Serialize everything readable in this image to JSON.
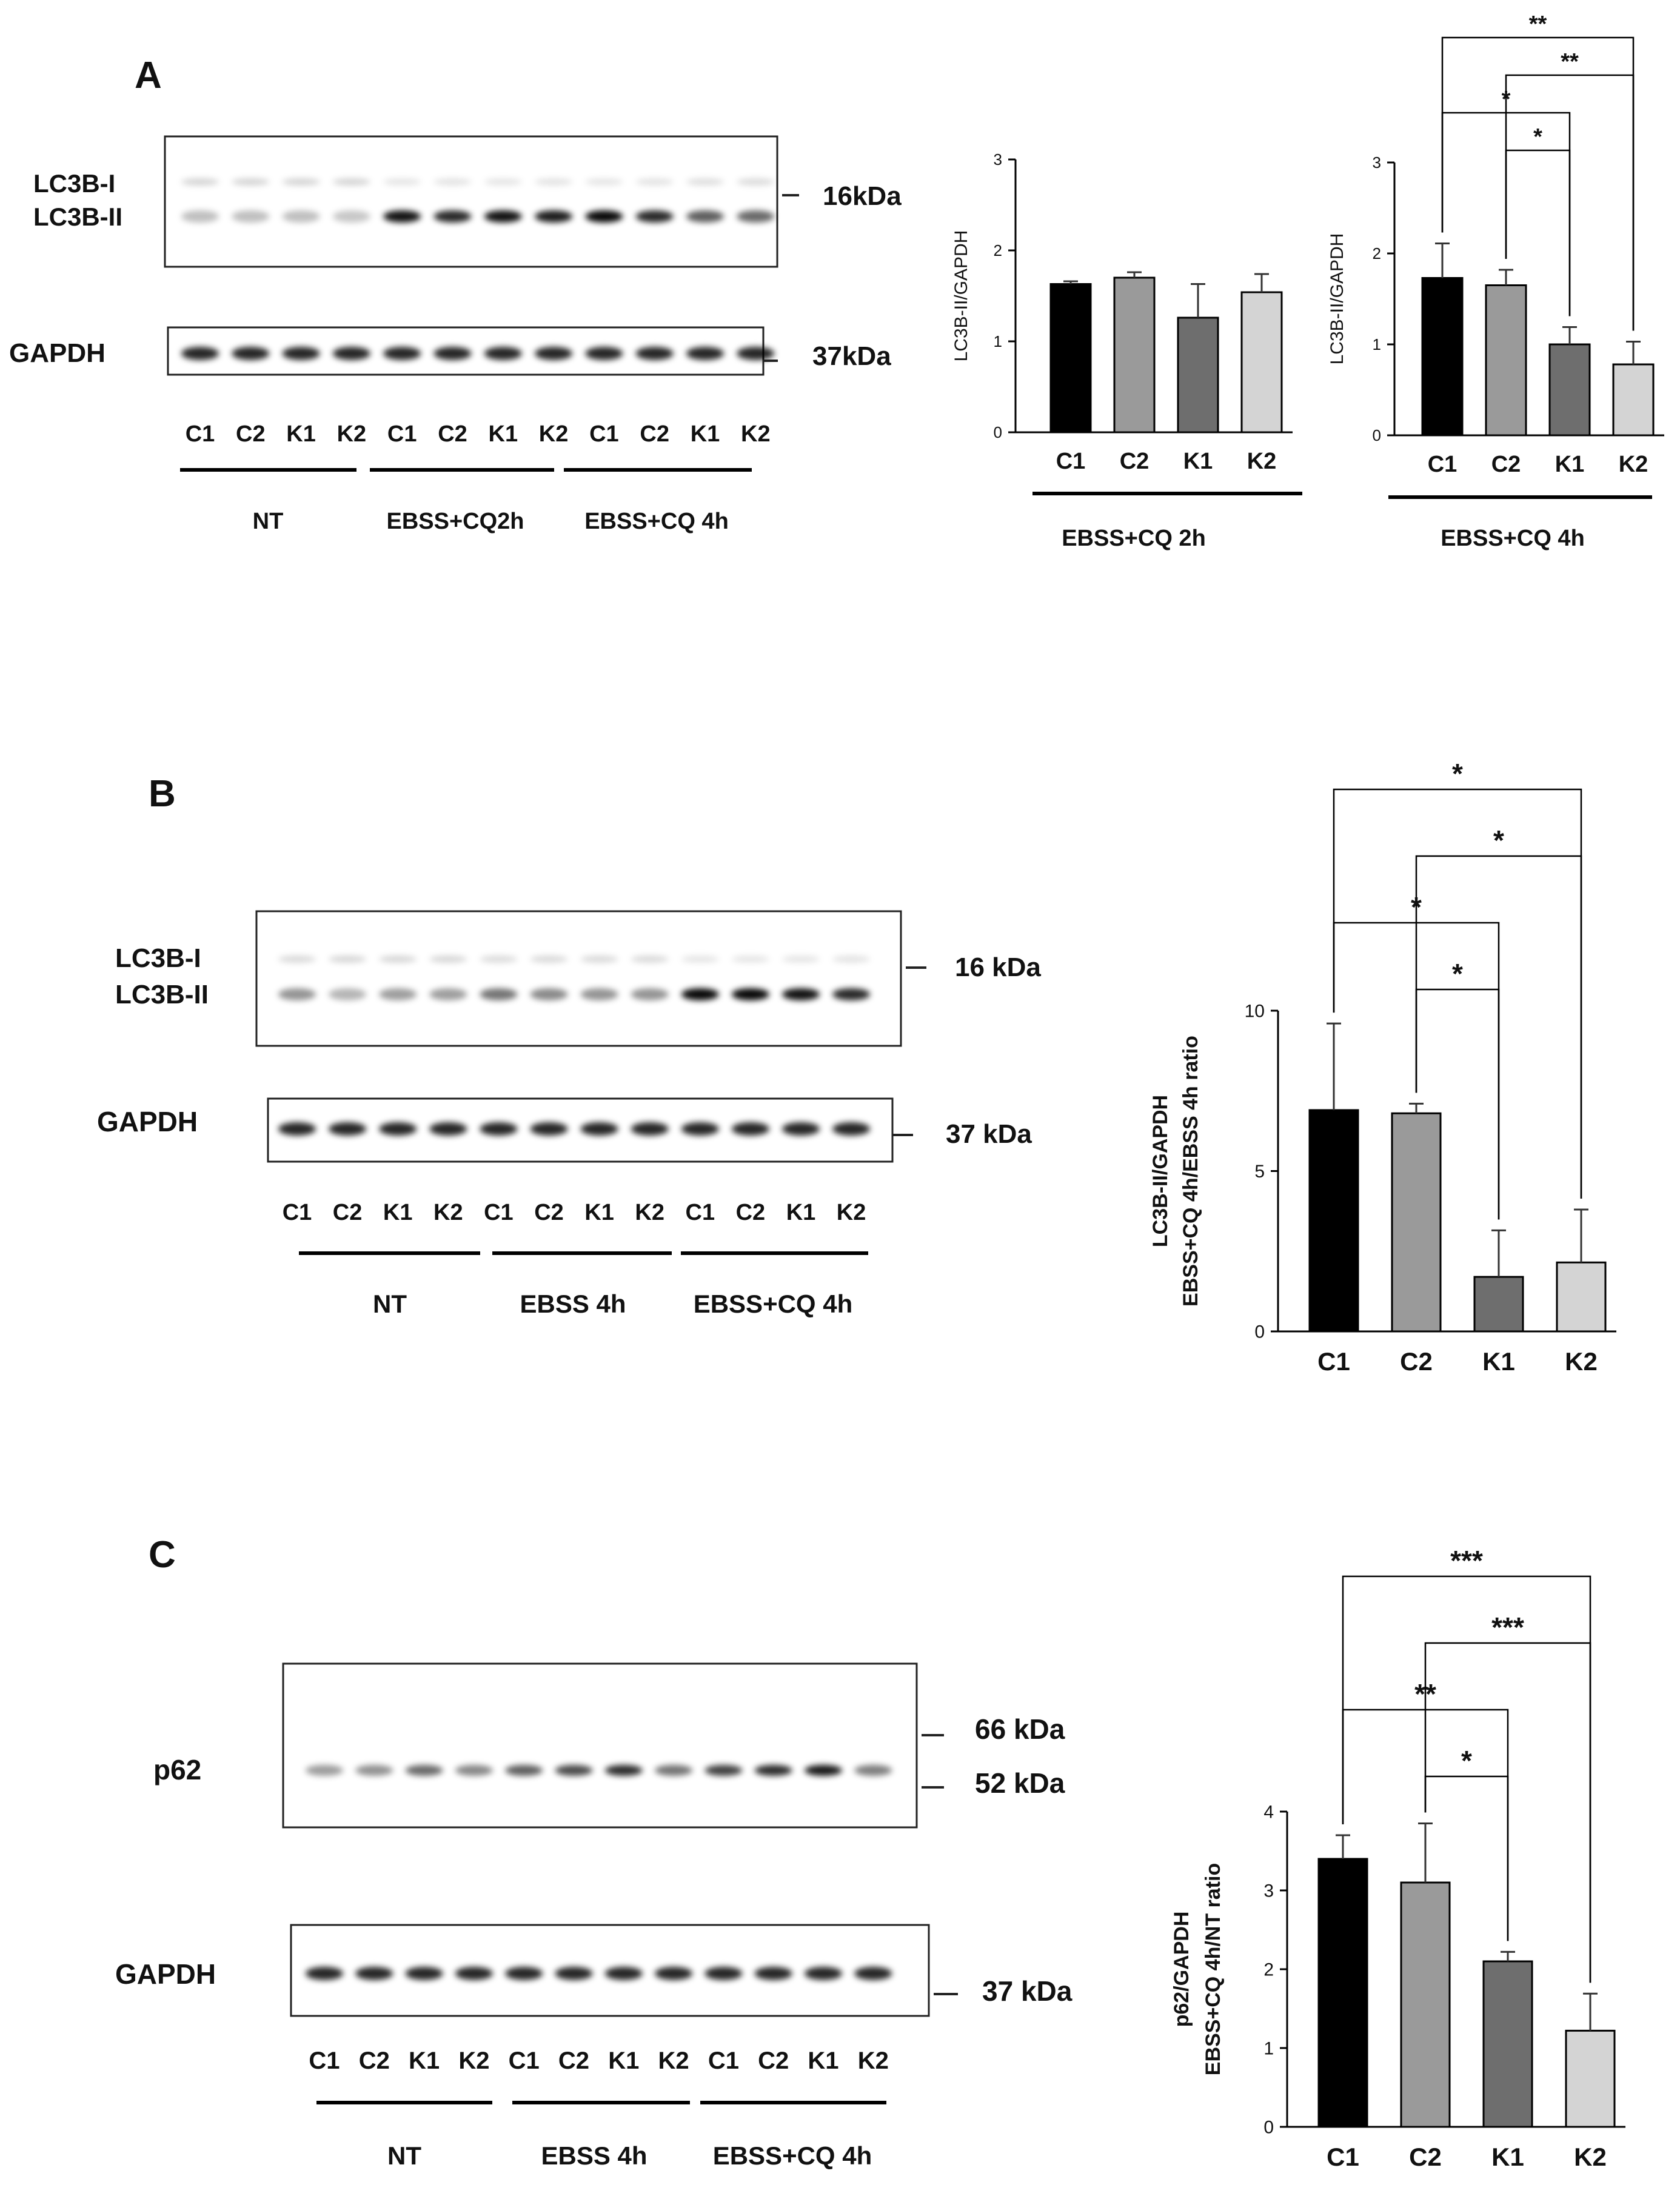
{
  "panels": [
    {
      "id": "A",
      "label": "A",
      "blot": {
        "proteins": [
          "LC3B-I",
          "LC3B-II"
        ],
        "marker": "16kDa",
        "loading_label": "GAPDH",
        "loading_marker": "37kDa",
        "lanes": [
          "C1",
          "C2",
          "K1",
          "K2",
          "C1",
          "C2",
          "K1",
          "K2",
          "C1",
          "C2",
          "K1",
          "K2"
        ],
        "groups": [
          "NT",
          "EBSS+CQ2h",
          "EBSS+CQ 4h"
        ],
        "bands_top": [
          0.15,
          0.15,
          0.15,
          0.12,
          0.95,
          0.85,
          0.95,
          0.9,
          1.0,
          0.85,
          0.6,
          0.55
        ],
        "bands_bottom": [
          1,
          1,
          1,
          1,
          1,
          1,
          1,
          1,
          1,
          1,
          1,
          1
        ]
      }
    },
    {
      "id": "B",
      "label": "B",
      "blot": {
        "proteins": [
          "LC3B-I",
          "LC3B-II"
        ],
        "marker": "16 kDa",
        "loading_label": "GAPDH",
        "loading_marker": "37 kDa",
        "lanes": [
          "C1",
          "C2",
          "K1",
          "K2",
          "C1",
          "C2",
          "K1",
          "K2",
          "C1",
          "C2",
          "K1",
          "K2"
        ],
        "groups": [
          "NT",
          "EBSS 4h",
          "EBSS+CQ 4h"
        ],
        "bands_top": [
          0.35,
          0.2,
          0.3,
          0.3,
          0.5,
          0.4,
          0.35,
          0.35,
          1.0,
          1.0,
          0.95,
          0.85
        ],
        "bands_bottom": [
          1,
          1,
          1,
          1,
          1,
          1,
          1,
          1,
          1,
          1,
          1,
          1
        ]
      }
    },
    {
      "id": "C",
      "label": "C",
      "blot": {
        "proteins": [
          "p62"
        ],
        "marker_top": "66 kDa",
        "marker": "52 kDa",
        "loading_label": "GAPDH",
        "loading_marker": "37 kDa",
        "lanes": [
          "C1",
          "C2",
          "K1",
          "K2",
          "C1",
          "C2",
          "K1",
          "K2",
          "C1",
          "C2",
          "K1",
          "K2"
        ],
        "groups": [
          "NT",
          "EBSS 4h",
          "EBSS+CQ 4h"
        ],
        "bands_top": [
          0.3,
          0.35,
          0.55,
          0.4,
          0.6,
          0.7,
          0.85,
          0.5,
          0.75,
          0.85,
          0.95,
          0.45
        ],
        "bands_bottom": [
          1,
          1,
          1,
          1,
          1,
          1,
          1,
          1,
          1,
          1,
          1,
          1
        ]
      }
    }
  ],
  "chart_data": [
    {
      "type": "bar",
      "panel": "A",
      "categories": [
        "C1",
        "C2",
        "K1",
        "K2"
      ],
      "values": [
        1.63,
        1.7,
        1.26,
        1.54
      ],
      "errors": [
        0.03,
        0.06,
        0.37,
        0.2
      ],
      "colors": [
        "#000000",
        "#9a9a9a",
        "#6e6e6e",
        "#d4d4d4"
      ],
      "ylabel": "LC3B-II/GAPDH",
      "xlabel": "EBSS+CQ 2h",
      "ylim": [
        0,
        3
      ],
      "yticks": [
        "0",
        "1",
        "2",
        "3"
      ],
      "significance": []
    },
    {
      "type": "bar",
      "panel": "A",
      "categories": [
        "C1",
        "C2",
        "K1",
        "K2"
      ],
      "values": [
        1.73,
        1.65,
        1.0,
        0.78
      ],
      "errors": [
        0.38,
        0.17,
        0.19,
        0.25
      ],
      "colors": [
        "#000000",
        "#9a9a9a",
        "#6e6e6e",
        "#d4d4d4"
      ],
      "ylabel": "LC3B-II/GAPDH",
      "xlabel": "EBSS+CQ 4h",
      "ylim": [
        0,
        3
      ],
      "yticks": [
        "0",
        "1",
        "2",
        "3"
      ],
      "significance": [
        {
          "from": "C1",
          "to": "K2",
          "label": "**",
          "level": 4
        },
        {
          "from": "C2",
          "to": "K2",
          "label": "**",
          "level": 3
        },
        {
          "from": "C1",
          "to": "K1",
          "label": "*",
          "level": 2
        },
        {
          "from": "C2",
          "to": "K1",
          "label": "*",
          "level": 1
        }
      ]
    },
    {
      "type": "bar",
      "panel": "B",
      "categories": [
        "C1",
        "C2",
        "K1",
        "K2"
      ],
      "values": [
        6.9,
        6.8,
        1.7,
        2.15
      ],
      "errors": [
        2.7,
        0.3,
        1.45,
        1.65
      ],
      "colors": [
        "#000000",
        "#9a9a9a",
        "#6e6e6e",
        "#d4d4d4"
      ],
      "ylabel": "LC3B-II/GAPDH",
      "ylabel2": "EBSS+CQ 4h/EBSS 4h ratio",
      "xlabel": "",
      "ylim": [
        0,
        10
      ],
      "yticks": [
        "0",
        "5",
        "10"
      ],
      "significance": [
        {
          "from": "C1",
          "to": "K2",
          "label": "*",
          "level": 4
        },
        {
          "from": "C2",
          "to": "K2",
          "label": "*",
          "level": 3
        },
        {
          "from": "C1",
          "to": "K1",
          "label": "*",
          "level": 2
        },
        {
          "from": "C2",
          "to": "K1",
          "label": "*",
          "level": 1
        }
      ]
    },
    {
      "type": "bar",
      "panel": "C",
      "categories": [
        "C1",
        "C2",
        "K1",
        "K2"
      ],
      "values": [
        3.4,
        3.1,
        2.1,
        1.22
      ],
      "errors": [
        0.3,
        0.75,
        0.12,
        0.47
      ],
      "colors": [
        "#000000",
        "#9a9a9a",
        "#6e6e6e",
        "#d4d4d4"
      ],
      "ylabel": "p62/GAPDH",
      "ylabel2": "EBSS+CQ 4h/NT ratio",
      "xlabel": "",
      "ylim": [
        0,
        4
      ],
      "yticks": [
        "0",
        "1",
        "2",
        "3",
        "4"
      ],
      "significance": [
        {
          "from": "C1",
          "to": "K2",
          "label": "***",
          "level": 4
        },
        {
          "from": "C2",
          "to": "K2",
          "label": "***",
          "level": 3
        },
        {
          "from": "C1",
          "to": "K1",
          "label": "**",
          "level": 2
        },
        {
          "from": "C2",
          "to": "K1",
          "label": "*",
          "level": 1
        }
      ]
    }
  ]
}
